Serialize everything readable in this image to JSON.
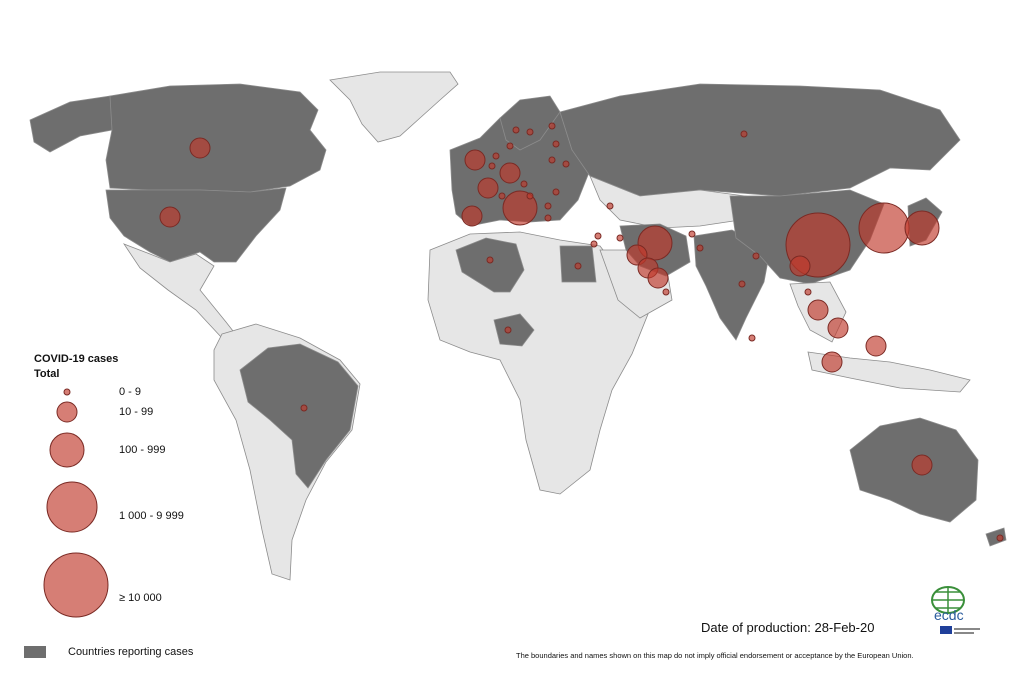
{
  "legend": {
    "title": "COVID-19 cases",
    "subtitle": "Total",
    "classes": [
      {
        "label": "0 - 9"
      },
      {
        "label": "10 - 99"
      },
      {
        "label": "100 - 999"
      },
      {
        "label": "1 000 - 9 999"
      },
      {
        "label": "≥ 10 000"
      }
    ],
    "countries_label": "Countries reporting cases"
  },
  "footer": {
    "date": "Date of production: 28-Feb-20",
    "disclaimer": "The boundaries and names shown on this map do not imply official endorsement or acceptance by the European Union."
  },
  "logo": {
    "text": "ecdc"
  },
  "colors": {
    "reporting": "#6e6e6e",
    "not_reporting": "#e6e6e6",
    "bubble": "#c0392b"
  },
  "reporting_regions": [
    "Canada",
    "United States",
    "Brazil",
    "Algeria",
    "Egypt",
    "Nigeria",
    "Russia",
    "China",
    "India",
    "Iran",
    "Australia",
    "Western Europe"
  ],
  "case_classes_by_location": [
    {
      "name": "China",
      "class": 5
    },
    {
      "name": "South Korea",
      "class": 4
    },
    {
      "name": "Japan",
      "class": 3
    },
    {
      "name": "Iran",
      "class": 3
    },
    {
      "name": "Italy",
      "class": 3
    },
    {
      "name": "Singapore",
      "class": 2
    },
    {
      "name": "Thailand",
      "class": 2
    },
    {
      "name": "Germany",
      "class": 2
    },
    {
      "name": "France",
      "class": 2
    },
    {
      "name": "Spain",
      "class": 2
    },
    {
      "name": "United Kingdom",
      "class": 2
    },
    {
      "name": "United States",
      "class": 2
    },
    {
      "name": "Canada",
      "class": 2
    },
    {
      "name": "Malaysia",
      "class": 2
    },
    {
      "name": "Philippines",
      "class": 2
    },
    {
      "name": "Australia",
      "class": 2
    },
    {
      "name": "Kuwait",
      "class": 2
    },
    {
      "name": "Bahrain",
      "class": 2
    },
    {
      "name": "UAE",
      "class": 2
    },
    {
      "name": "Vietnam",
      "class": 2
    },
    {
      "name": "Brazil",
      "class": 1
    },
    {
      "name": "Nigeria",
      "class": 1
    },
    {
      "name": "Algeria",
      "class": 1
    },
    {
      "name": "Egypt",
      "class": 1
    },
    {
      "name": "Russia",
      "class": 1
    },
    {
      "name": "India",
      "class": 1
    },
    {
      "name": "Pakistan",
      "class": 1
    },
    {
      "name": "Afghanistan",
      "class": 1
    },
    {
      "name": "Nepal",
      "class": 1
    },
    {
      "name": "Sri Lanka",
      "class": 1
    },
    {
      "name": "Cambodia",
      "class": 1
    },
    {
      "name": "Israel",
      "class": 1
    },
    {
      "name": "Lebanon",
      "class": 1
    },
    {
      "name": "Iraq",
      "class": 1
    },
    {
      "name": "Oman",
      "class": 1
    },
    {
      "name": "Greece",
      "class": 1
    },
    {
      "name": "Croatia",
      "class": 1
    },
    {
      "name": "Austria",
      "class": 1
    },
    {
      "name": "Switzerland",
      "class": 1
    },
    {
      "name": "Belgium",
      "class": 1
    },
    {
      "name": "Netherlands",
      "class": 1
    },
    {
      "name": "Denmark",
      "class": 1
    },
    {
      "name": "Norway",
      "class": 1
    },
    {
      "name": "Sweden",
      "class": 1
    },
    {
      "name": "Finland",
      "class": 1
    },
    {
      "name": "Estonia",
      "class": 1
    },
    {
      "name": "Lithuania",
      "class": 1
    },
    {
      "name": "Belarus",
      "class": 1
    },
    {
      "name": "Romania",
      "class": 1
    },
    {
      "name": "North Macedonia",
      "class": 1
    },
    {
      "name": "Georgia",
      "class": 1
    },
    {
      "name": "New Zealand",
      "class": 1
    }
  ]
}
